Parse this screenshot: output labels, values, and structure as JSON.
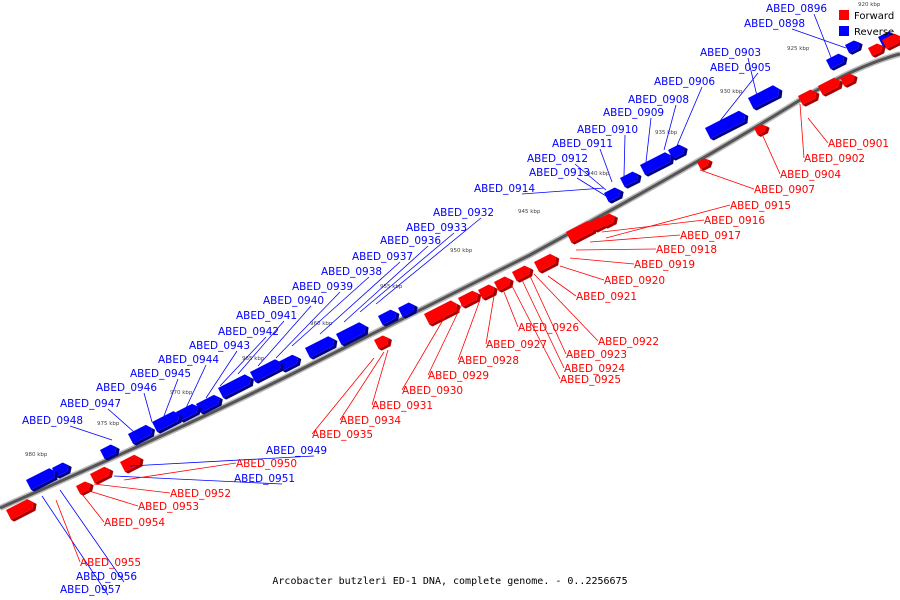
{
  "colors": {
    "forward": "#ff0000",
    "reverse": "#0000ff",
    "backbone": "#555555"
  },
  "legend": {
    "forward": "Forward",
    "reverse": "Reverse"
  },
  "caption": "Arcobacter butzleri ED-1 DNA, complete genome. - 0..2256675",
  "ticks": [
    "920 kbp",
    "925 kbp",
    "930 kbp",
    "935 kbp",
    "940 kbp",
    "945 kbp",
    "950 kbp",
    "955 kbp",
    "960 kbp",
    "965 kbp",
    "970 kbp",
    "975 kbp",
    "980 kbp"
  ],
  "reverse_genes": [
    "ABED_0896",
    "ABED_0898",
    "ABED_0903",
    "ABED_0905",
    "ABED_0906",
    "ABED_0908",
    "ABED_0909",
    "ABED_0910",
    "ABED_0911",
    "ABED_0912",
    "ABED_0913",
    "ABED_0914",
    "ABED_0932",
    "ABED_0933",
    "ABED_0936",
    "ABED_0937",
    "ABED_0938",
    "ABED_0939",
    "ABED_0940",
    "ABED_0941",
    "ABED_0942",
    "ABED_0943",
    "ABED_0944",
    "ABED_0945",
    "ABED_0946",
    "ABED_0947",
    "ABED_0948",
    "ABED_0949",
    "ABED_0951",
    "ABED_0956",
    "ABED_0957"
  ],
  "forward_genes": [
    "ABED_0901",
    "ABED_0902",
    "ABED_0904",
    "ABED_0907",
    "ABED_0915",
    "ABED_0916",
    "ABED_0917",
    "ABED_0918",
    "ABED_0919",
    "ABED_0920",
    "ABED_0921",
    "ABED_0922",
    "ABED_0923",
    "ABED_0924",
    "ABED_0925",
    "ABED_0926",
    "ABED_0927",
    "ABED_0928",
    "ABED_0929",
    "ABED_0930",
    "ABED_0931",
    "ABED_0934",
    "ABED_0935",
    "ABED_0950",
    "ABED_0952",
    "ABED_0953",
    "ABED_0954",
    "ABED_0955"
  ]
}
